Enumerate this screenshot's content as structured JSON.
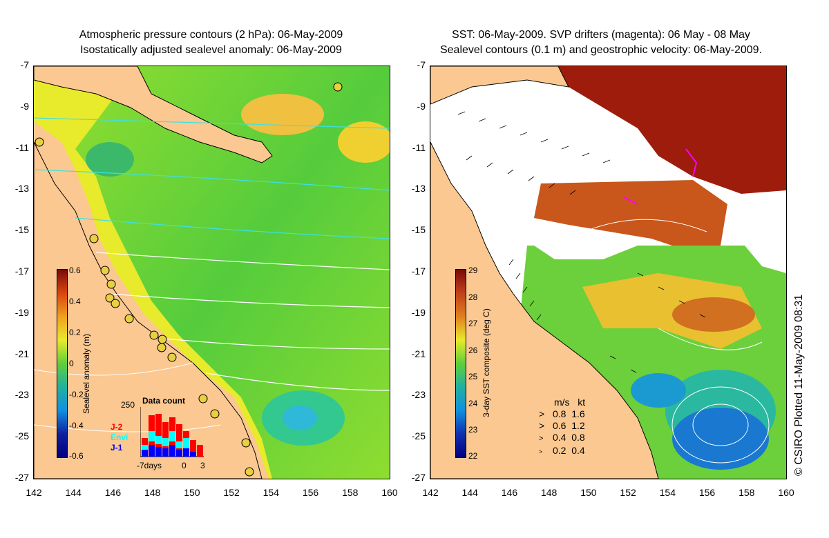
{
  "left_panel": {
    "title_line1": "Atmospheric pressure contours (2 hPa): 06-May-2009",
    "title_line2": "Isostatically adjusted sealevel anomaly: 06-May-2009",
    "colorbar_title": "Sealevel anomaly (m)",
    "colorbar_ticks": [
      "0.6",
      "0.4",
      "0.2",
      "0",
      "-0.2",
      "-0.4",
      "-0.6"
    ],
    "inset": {
      "title": "Data count",
      "max_label": "250",
      "x_labels": [
        "-7days",
        "0",
        "3"
      ],
      "legend": [
        {
          "label": "J-2",
          "color": "#ff0000"
        },
        {
          "label": "Envi",
          "color": "#00ffff"
        },
        {
          "label": "J-1",
          "color": "#0000ff"
        }
      ]
    }
  },
  "right_panel": {
    "title_line1": "SST: 06-May-2009. SVP drifters (magenta): 06 May - 08 May",
    "title_line2": "Sealevel contours (0.1 m) and geostrophic velocity: 06-May-2009.",
    "colorbar_title": "3-day SST composite (deg C)",
    "colorbar_ticks": [
      "29",
      "28",
      "27",
      "26",
      "25",
      "24",
      "23",
      "22"
    ],
    "velocity_legend": {
      "header_ms": "m/s",
      "header_kt": "kt",
      "rows": [
        {
          "ms": "0.8",
          "kt": "1.6"
        },
        {
          "ms": "0.6",
          "kt": "1.2"
        },
        {
          "ms": "0.4",
          "kt": "0.8"
        },
        {
          "ms": "0.2",
          "kt": "0.4"
        }
      ]
    }
  },
  "y_ticks": [
    "-7",
    "-9",
    "-11",
    "-13",
    "-15",
    "-17",
    "-19",
    "-21",
    "-23",
    "-25",
    "-27"
  ],
  "x_ticks": [
    "142",
    "144",
    "146",
    "148",
    "150",
    "152",
    "154",
    "156",
    "158",
    "160"
  ],
  "credit": "© CSIRO Plotted 11-May-2009 08:31",
  "colors": {
    "land": "#fbc891",
    "sea_green": "#5fcf3a",
    "sea_yellow": "#e8ea2c",
    "cloud_white": "#ffffff",
    "warm_sst": "#b23b12"
  }
}
